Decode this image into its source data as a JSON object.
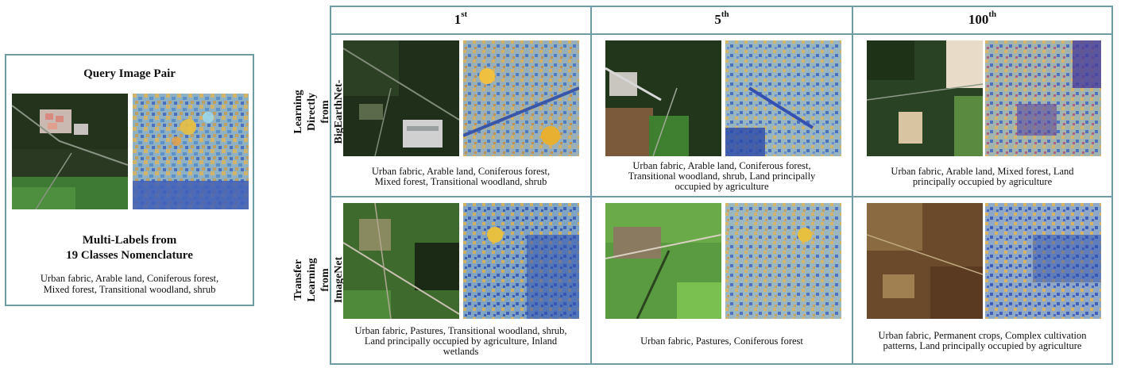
{
  "query": {
    "title": "Query Image Pair",
    "subtitle_line1": "Multi-Labels from",
    "subtitle_line2": "19 Classes Nomenclature",
    "labels_line1": "Urban fabric, Arable land, Coniferous forest,",
    "labels_line2": "Mixed forest, Transitional woodland, shrub"
  },
  "columns": [
    {
      "rank": "1",
      "suffix": "st"
    },
    {
      "rank": "5",
      "suffix": "th"
    },
    {
      "rank": "100",
      "suffix": "th"
    }
  ],
  "rows": [
    {
      "label_line1": "Learning  Directly",
      "label_line2": "from BigEarthNet-MM",
      "cells": [
        {
          "line1": "Urban fabric, Arable land, Coniferous forest,",
          "line2": "Mixed forest, Transitional woodland, shrub",
          "line3": ""
        },
        {
          "line1": "Urban fabric, Arable land, Coniferous forest,",
          "line2": "Transitional woodland, shrub, Land principally",
          "line3": "occupied by agriculture"
        },
        {
          "line1": "Urban fabric, Arable land, Mixed forest, Land",
          "line2": "principally occupied by agriculture",
          "line3": ""
        }
      ]
    },
    {
      "label_line1": "Transfer Learning",
      "label_line2": "from ImageNet",
      "cells": [
        {
          "line1": "Urban fabric, Pastures, Transitional woodland, shrub,",
          "line2": "Land principally occupied by agriculture, Inland",
          "line3": "wetlands"
        },
        {
          "line1": "Urban fabric, Pastures, Coniferous forest",
          "line2": "",
          "line3": ""
        },
        {
          "line1": "Urban fabric, Permanent crops, Complex cultivation",
          "line2": "patterns, Land principally occupied by agriculture",
          "line3": ""
        }
      ]
    }
  ],
  "colors": {
    "border": "#6e9ea3"
  }
}
